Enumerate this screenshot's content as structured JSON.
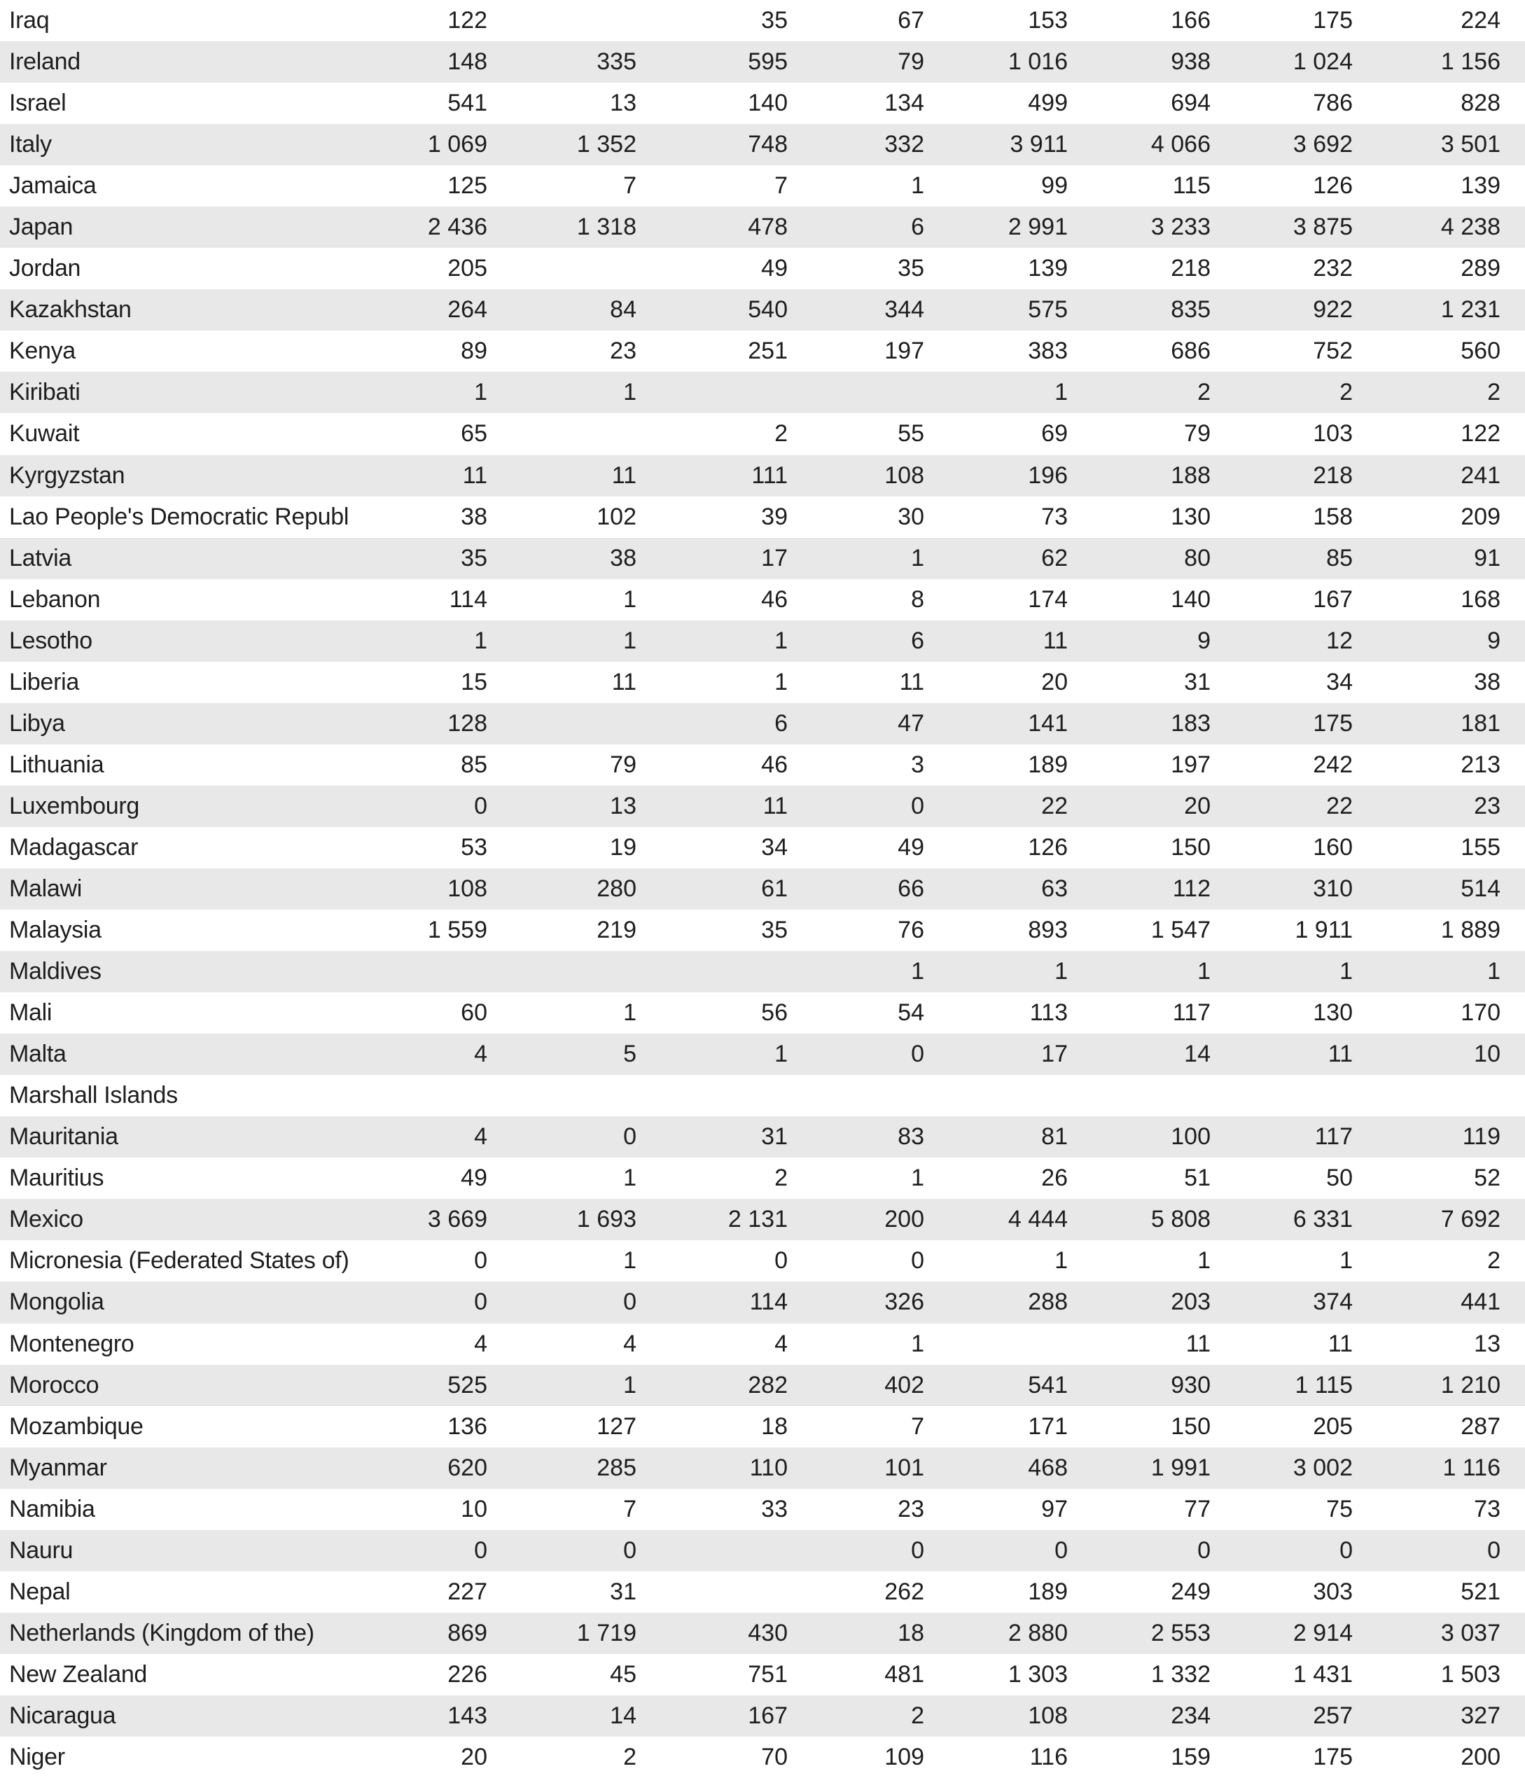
{
  "table": {
    "rows": [
      [
        "Iraq",
        "122",
        "",
        "35",
        "67",
        "153",
        "166",
        "175",
        "224"
      ],
      [
        "Ireland",
        "148",
        "335",
        "595",
        "79",
        "1 016",
        "938",
        "1 024",
        "1 156"
      ],
      [
        "Israel",
        "541",
        "13",
        "140",
        "134",
        "499",
        "694",
        "786",
        "828"
      ],
      [
        "Italy",
        "1 069",
        "1 352",
        "748",
        "332",
        "3 911",
        "4 066",
        "3 692",
        "3 501"
      ],
      [
        "Jamaica",
        "125",
        "7",
        "7",
        "1",
        "99",
        "115",
        "126",
        "139"
      ],
      [
        "Japan",
        "2 436",
        "1 318",
        "478",
        "6",
        "2 991",
        "3 233",
        "3 875",
        "4 238"
      ],
      [
        "Jordan",
        "205",
        "",
        "49",
        "35",
        "139",
        "218",
        "232",
        "289"
      ],
      [
        "Kazakhstan",
        "264",
        "84",
        "540",
        "344",
        "575",
        "835",
        "922",
        "1 231"
      ],
      [
        "Kenya",
        "89",
        "23",
        "251",
        "197",
        "383",
        "686",
        "752",
        "560"
      ],
      [
        "Kiribati",
        "1",
        "1",
        "",
        "",
        "1",
        "2",
        "2",
        "2"
      ],
      [
        "Kuwait",
        "65",
        "",
        "2",
        "55",
        "69",
        "79",
        "103",
        "122"
      ],
      [
        "Kyrgyzstan",
        "11",
        "11",
        "111",
        "108",
        "196",
        "188",
        "218",
        "241"
      ],
      [
        "Lao People's Democratic Republic",
        "38",
        "102",
        "39",
        "30",
        "73",
        "130",
        "158",
        "209"
      ],
      [
        "Latvia",
        "35",
        "38",
        "17",
        "1",
        "62",
        "80",
        "85",
        "91"
      ],
      [
        "Lebanon",
        "114",
        "1",
        "46",
        "8",
        "174",
        "140",
        "167",
        "168"
      ],
      [
        "Lesotho",
        "1",
        "1",
        "1",
        "6",
        "11",
        "9",
        "12",
        "9"
      ],
      [
        "Liberia",
        "15",
        "11",
        "1",
        "11",
        "20",
        "31",
        "34",
        "38"
      ],
      [
        "Libya",
        "128",
        "",
        "6",
        "47",
        "141",
        "183",
        "175",
        "181"
      ],
      [
        "Lithuania",
        "85",
        "79",
        "46",
        "3",
        "189",
        "197",
        "242",
        "213"
      ],
      [
        "Luxembourg",
        "0",
        "13",
        "11",
        "0",
        "22",
        "20",
        "22",
        "23"
      ],
      [
        "Madagascar",
        "53",
        "19",
        "34",
        "49",
        "126",
        "150",
        "160",
        "155"
      ],
      [
        "Malawi",
        "108",
        "280",
        "61",
        "66",
        "63",
        "112",
        "310",
        "514"
      ],
      [
        "Malaysia",
        "1 559",
        "219",
        "35",
        "76",
        "893",
        "1 547",
        "1 911",
        "1 889"
      ],
      [
        "Maldives",
        "",
        "",
        "",
        "1",
        "1",
        "1",
        "1",
        "1"
      ],
      [
        "Mali",
        "60",
        "1",
        "56",
        "54",
        "113",
        "117",
        "130",
        "170"
      ],
      [
        "Malta",
        "4",
        "5",
        "1",
        "0",
        "17",
        "14",
        "11",
        "10"
      ],
      [
        "Marshall Islands",
        "",
        "",
        "",
        "",
        "",
        "",
        "",
        ""
      ],
      [
        "Mauritania",
        "4",
        "0",
        "31",
        "83",
        "81",
        "100",
        "117",
        "119"
      ],
      [
        "Mauritius",
        "49",
        "1",
        "2",
        "1",
        "26",
        "51",
        "50",
        "52"
      ],
      [
        "Mexico",
        "3 669",
        "1 693",
        "2 131",
        "200",
        "4 444",
        "5 808",
        "6 331",
        "7 692"
      ],
      [
        "Micronesia (Federated States of)",
        "0",
        "1",
        "0",
        "0",
        "1",
        "1",
        "1",
        "2"
      ],
      [
        "Mongolia",
        "0",
        "0",
        "114",
        "326",
        "288",
        "203",
        "374",
        "441"
      ],
      [
        "Montenegro",
        "4",
        "4",
        "4",
        "1",
        "",
        "11",
        "11",
        "13"
      ],
      [
        "Morocco",
        "525",
        "1",
        "282",
        "402",
        "541",
        "930",
        "1 115",
        "1 210"
      ],
      [
        "Mozambique",
        "136",
        "127",
        "18",
        "7",
        "171",
        "150",
        "205",
        "287"
      ],
      [
        "Myanmar",
        "620",
        "285",
        "110",
        "101",
        "468",
        "1 991",
        "3 002",
        "1 116"
      ],
      [
        "Namibia",
        "10",
        "7",
        "33",
        "23",
        "97",
        "77",
        "75",
        "73"
      ],
      [
        "Nauru",
        "0",
        "0",
        "",
        "0",
        "0",
        "0",
        "0",
        "0"
      ],
      [
        "Nepal",
        "227",
        "31",
        "",
        "262",
        "189",
        "249",
        "303",
        "521"
      ],
      [
        "Netherlands (Kingdom of the)",
        "869",
        "1 719",
        "430",
        "18",
        "2 880",
        "2 553",
        "2 914",
        "3 037"
      ],
      [
        "New Zealand",
        "226",
        "45",
        "751",
        "481",
        "1 303",
        "1 332",
        "1 431",
        "1 503"
      ],
      [
        "Nicaragua",
        "143",
        "14",
        "167",
        "2",
        "108",
        "234",
        "257",
        "327"
      ],
      [
        "Niger",
        "20",
        "2",
        "70",
        "109",
        "116",
        "159",
        "175",
        "200"
      ]
    ]
  }
}
